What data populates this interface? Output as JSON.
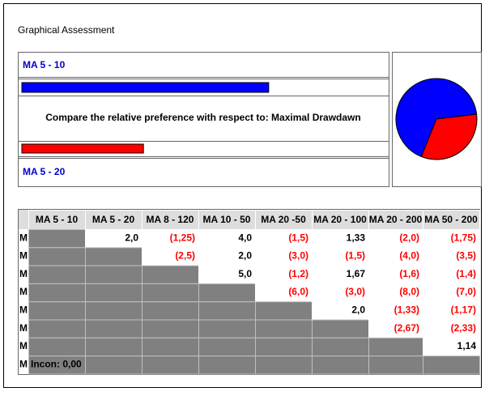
{
  "window": {
    "title": "Graphical Assessment"
  },
  "comparison": {
    "first": "MA 5 - 10",
    "second": "MA 5 - 20",
    "question": "Compare the relative preference with respect to: Maximal Drawdawn",
    "weights": [
      0.67,
      0.33
    ],
    "colors": [
      "#0000ff",
      "#ff0000"
    ]
  },
  "table": {
    "columns": [
      "MA 5 - 10",
      "MA 5 - 20",
      "MA 8 - 120",
      "MA 10 - 50",
      "MA 20 -50",
      "MA 20 - 100",
      "MA 20 - 200",
      "MA 50 - 200"
    ],
    "row_labels": [
      "M",
      "M",
      "M",
      "M",
      "M",
      "M",
      "M",
      "M"
    ],
    "rows": [
      [
        null,
        "2,0",
        "(1,25)",
        "4,0",
        "(1,5)",
        "1,33",
        "(2,0)",
        "(1,75)"
      ],
      [
        null,
        null,
        "(2,5)",
        "2,0",
        "(3,0)",
        "(1,5)",
        "(4,0)",
        "(3,5)"
      ],
      [
        null,
        null,
        null,
        "5,0",
        "(1,2)",
        "1,67",
        "(1,6)",
        "(1,4)"
      ],
      [
        null,
        null,
        null,
        null,
        "(6,0)",
        "(3,0)",
        "(8,0)",
        "(7,0)"
      ],
      [
        null,
        null,
        null,
        null,
        null,
        "2,0",
        "(1,33)",
        "(1,17)"
      ],
      [
        null,
        null,
        null,
        null,
        null,
        null,
        "(2,67)",
        "(2,33)"
      ],
      [
        null,
        null,
        null,
        null,
        null,
        null,
        null,
        "1,14"
      ],
      [
        "Incon: 0,00",
        null,
        null,
        null,
        null,
        null,
        null,
        null
      ]
    ]
  }
}
